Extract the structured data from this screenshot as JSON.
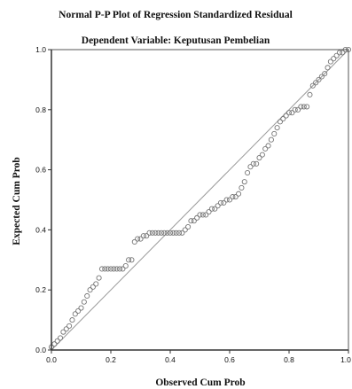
{
  "chart_data": {
    "type": "scatter",
    "title": "Normal P-P Plot of Regression Standardized Residual",
    "subtitle": "Dependent Variable: Keputusan Pembelian",
    "xlabel": "Observed Cum Prob",
    "ylabel": "Expected Cum Prob",
    "xlim": [
      0.0,
      1.0
    ],
    "ylim": [
      0.0,
      1.0
    ],
    "x_ticks": [
      "0.0",
      "0.2",
      "0.4",
      "0.6",
      "0.8",
      "1.0"
    ],
    "y_ticks": [
      "0.0",
      "0.2",
      "0.4",
      "0.6",
      "0.8",
      "1.0"
    ],
    "grid": false,
    "reference_line": {
      "from": [
        0.0,
        0.0
      ],
      "to": [
        1.0,
        1.0
      ]
    },
    "colors": {
      "points": "#777777",
      "reference_line": "#999999",
      "frame": "#555555"
    },
    "points": [
      [
        0.0,
        0.01
      ],
      [
        0.01,
        0.02
      ],
      [
        0.02,
        0.03
      ],
      [
        0.03,
        0.04
      ],
      [
        0.04,
        0.06
      ],
      [
        0.05,
        0.07
      ],
      [
        0.06,
        0.08
      ],
      [
        0.07,
        0.1
      ],
      [
        0.08,
        0.12
      ],
      [
        0.09,
        0.13
      ],
      [
        0.1,
        0.14
      ],
      [
        0.11,
        0.16
      ],
      [
        0.12,
        0.18
      ],
      [
        0.13,
        0.2
      ],
      [
        0.14,
        0.21
      ],
      [
        0.15,
        0.22
      ],
      [
        0.16,
        0.24
      ],
      [
        0.17,
        0.27
      ],
      [
        0.18,
        0.27
      ],
      [
        0.19,
        0.27
      ],
      [
        0.2,
        0.27
      ],
      [
        0.21,
        0.27
      ],
      [
        0.22,
        0.27
      ],
      [
        0.23,
        0.27
      ],
      [
        0.24,
        0.27
      ],
      [
        0.25,
        0.28
      ],
      [
        0.26,
        0.3
      ],
      [
        0.27,
        0.3
      ],
      [
        0.28,
        0.36
      ],
      [
        0.29,
        0.37
      ],
      [
        0.3,
        0.37
      ],
      [
        0.31,
        0.38
      ],
      [
        0.32,
        0.38
      ],
      [
        0.33,
        0.39
      ],
      [
        0.34,
        0.39
      ],
      [
        0.35,
        0.39
      ],
      [
        0.36,
        0.39
      ],
      [
        0.37,
        0.39
      ],
      [
        0.38,
        0.39
      ],
      [
        0.39,
        0.39
      ],
      [
        0.4,
        0.39
      ],
      [
        0.41,
        0.39
      ],
      [
        0.42,
        0.39
      ],
      [
        0.43,
        0.39
      ],
      [
        0.44,
        0.39
      ],
      [
        0.45,
        0.4
      ],
      [
        0.46,
        0.41
      ],
      [
        0.47,
        0.43
      ],
      [
        0.48,
        0.43
      ],
      [
        0.49,
        0.44
      ],
      [
        0.5,
        0.45
      ],
      [
        0.51,
        0.45
      ],
      [
        0.52,
        0.45
      ],
      [
        0.53,
        0.46
      ],
      [
        0.54,
        0.47
      ],
      [
        0.55,
        0.47
      ],
      [
        0.56,
        0.48
      ],
      [
        0.57,
        0.49
      ],
      [
        0.58,
        0.49
      ],
      [
        0.59,
        0.5
      ],
      [
        0.6,
        0.5
      ],
      [
        0.61,
        0.51
      ],
      [
        0.62,
        0.51
      ],
      [
        0.63,
        0.52
      ],
      [
        0.64,
        0.54
      ],
      [
        0.65,
        0.56
      ],
      [
        0.66,
        0.59
      ],
      [
        0.67,
        0.61
      ],
      [
        0.68,
        0.62
      ],
      [
        0.69,
        0.62
      ],
      [
        0.7,
        0.64
      ],
      [
        0.71,
        0.65
      ],
      [
        0.72,
        0.67
      ],
      [
        0.73,
        0.68
      ],
      [
        0.74,
        0.7
      ],
      [
        0.75,
        0.72
      ],
      [
        0.76,
        0.74
      ],
      [
        0.77,
        0.76
      ],
      [
        0.78,
        0.77
      ],
      [
        0.79,
        0.78
      ],
      [
        0.8,
        0.79
      ],
      [
        0.81,
        0.79
      ],
      [
        0.82,
        0.8
      ],
      [
        0.83,
        0.8
      ],
      [
        0.84,
        0.81
      ],
      [
        0.85,
        0.81
      ],
      [
        0.86,
        0.81
      ],
      [
        0.87,
        0.85
      ],
      [
        0.88,
        0.88
      ],
      [
        0.89,
        0.89
      ],
      [
        0.9,
        0.9
      ],
      [
        0.91,
        0.91
      ],
      [
        0.92,
        0.92
      ],
      [
        0.93,
        0.94
      ],
      [
        0.94,
        0.96
      ],
      [
        0.95,
        0.97
      ],
      [
        0.96,
        0.98
      ],
      [
        0.97,
        0.99
      ],
      [
        0.98,
        0.99
      ],
      [
        0.99,
        1.0
      ],
      [
        1.0,
        1.0
      ]
    ]
  }
}
